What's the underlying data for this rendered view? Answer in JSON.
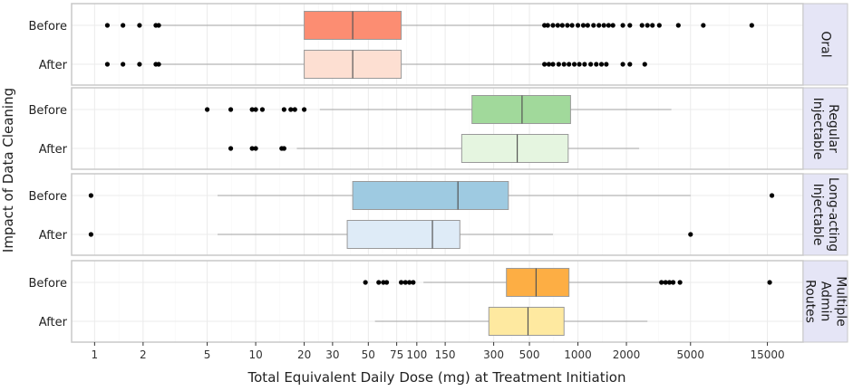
{
  "chart_data": {
    "type": "boxplot",
    "title": "",
    "xlabel": "Total Equivalent Daily Dose (mg) at Treatment Initiation",
    "ylabel": "Impact of Data Cleaning",
    "x_scale": "log10",
    "xlim": [
      0.72,
      25000
    ],
    "x_ticks": [
      1,
      2,
      5,
      10,
      20,
      30,
      50,
      75,
      100,
      150,
      300,
      500,
      1000,
      2000,
      5000,
      15000
    ],
    "x_tick_labels": [
      "1",
      "2",
      "5",
      "10",
      "20",
      "30",
      "50",
      "75",
      "100",
      "150",
      "300",
      "500",
      "1000",
      "2000",
      "5000",
      "15000"
    ],
    "categories": [
      "Before",
      "After"
    ],
    "panels": [
      {
        "label_lines": [
          "Oral"
        ],
        "boxes": [
          {
            "name": "Before",
            "color": "#fc8d72",
            "whisker_low": 2.5,
            "q1": 20,
            "median": 40,
            "q3": 80,
            "whisker_high": 600,
            "outliers": [
              1.2,
              1.5,
              1.9,
              2.4,
              2.5,
              620,
              650,
              700,
              750,
              800,
              860,
              920,
              1000,
              1080,
              1150,
              1250,
              1350,
              1450,
              1550,
              1650,
              1900,
              2100,
              2500,
              2700,
              2900,
              3200,
              4200,
              6000,
              12000
            ]
          },
          {
            "name": "After",
            "color": "#fddfd2",
            "whisker_low": 2.5,
            "q1": 20,
            "median": 40,
            "q3": 80,
            "whisker_high": 600,
            "outliers": [
              1.2,
              1.5,
              1.9,
              2.4,
              2.5,
              620,
              660,
              700,
              760,
              820,
              880,
              950,
              1020,
              1100,
              1200,
              1300,
              1400,
              1500,
              1900,
              2100,
              2600
            ]
          }
        ]
      },
      {
        "label_lines": [
          "Regular",
          "Injectable"
        ],
        "boxes": [
          {
            "name": "Before",
            "color": "#a1d99b",
            "whisker_low": 25,
            "q1": 220,
            "median": 450,
            "q3": 900,
            "whisker_high": 3800,
            "outliers": [
              5,
              7,
              9.5,
              10,
              11,
              15,
              16.5,
              17.5,
              20
            ]
          },
          {
            "name": "After",
            "color": "#e5f5e0",
            "whisker_low": 18,
            "q1": 190,
            "median": 420,
            "q3": 870,
            "whisker_high": 2400,
            "outliers": [
              7,
              9.5,
              10,
              14.5,
              15
            ]
          }
        ]
      },
      {
        "label_lines": [
          "Long-acting",
          "Injectable"
        ],
        "boxes": [
          {
            "name": "Before",
            "color": "#9ecae1",
            "whisker_low": 5.8,
            "q1": 40,
            "median": 180,
            "q3": 370,
            "whisker_high": 5000,
            "outliers": [
              0.95,
              16000
            ]
          },
          {
            "name": "After",
            "color": "#deebf7",
            "whisker_low": 5.8,
            "q1": 37,
            "median": 125,
            "q3": 185,
            "whisker_high": 700,
            "outliers": [
              0.95,
              5000
            ]
          }
        ]
      },
      {
        "label_lines": [
          "Multiple",
          "Admin",
          "Routes"
        ],
        "boxes": [
          {
            "name": "Before",
            "color": "#fdae44",
            "whisker_low": 110,
            "q1": 360,
            "median": 550,
            "q3": 880,
            "whisker_high": 3200,
            "outliers": [
              48,
              58,
              62,
              65,
              80,
              85,
              90,
              95,
              3300,
              3500,
              3700,
              3900,
              4300,
              15500
            ]
          },
          {
            "name": "After",
            "color": "#fee9a0",
            "whisker_low": 55,
            "q1": 280,
            "median": 490,
            "q3": 820,
            "whisker_high": 2700,
            "outliers": []
          }
        ]
      }
    ],
    "colors": {
      "panel_border": "#c8c8c8",
      "strip_fill": "#e5e5f6",
      "grid_major": "#ebebeb",
      "whisker": "#b3b3b3",
      "outlier": "#000000"
    }
  }
}
